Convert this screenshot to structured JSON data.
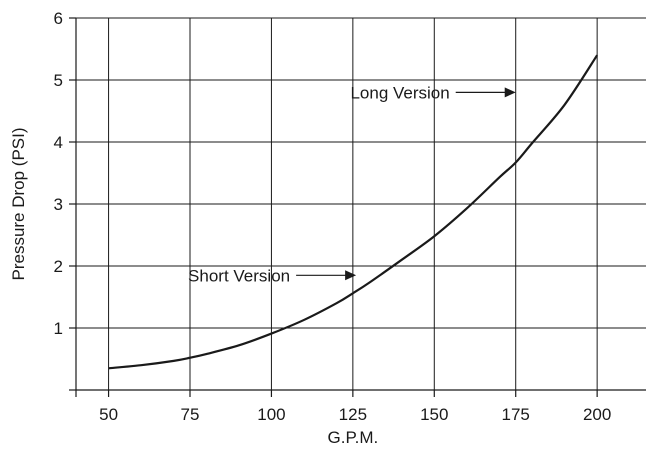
{
  "chart_data": {
    "type": "line",
    "xlabel": "G.P.M.",
    "ylabel": "Pressure Drop (PSI)",
    "xlim": [
      40,
      215
    ],
    "ylim": [
      0,
      6
    ],
    "x_ticks": [
      50,
      75,
      100,
      125,
      150,
      175,
      200
    ],
    "y_ticks": [
      1,
      2,
      3,
      4,
      5,
      6
    ],
    "grid": true,
    "series": [
      {
        "x": [
          50,
          60,
          70,
          75,
          80,
          90,
          100,
          110,
          120,
          125,
          130,
          140,
          150,
          160,
          170,
          175,
          180,
          190,
          200
        ],
        "y": [
          0.35,
          0.4,
          0.47,
          0.52,
          0.58,
          0.72,
          0.91,
          1.13,
          1.4,
          1.56,
          1.73,
          2.1,
          2.48,
          2.93,
          3.43,
          3.67,
          3.98,
          4.6,
          5.4
        ]
      }
    ],
    "annotations": [
      {
        "text": "Short Version",
        "arrow_to": [
          126,
          1.85
        ]
      },
      {
        "text": "Long Version",
        "arrow_to": [
          175,
          4.8
        ]
      }
    ]
  }
}
